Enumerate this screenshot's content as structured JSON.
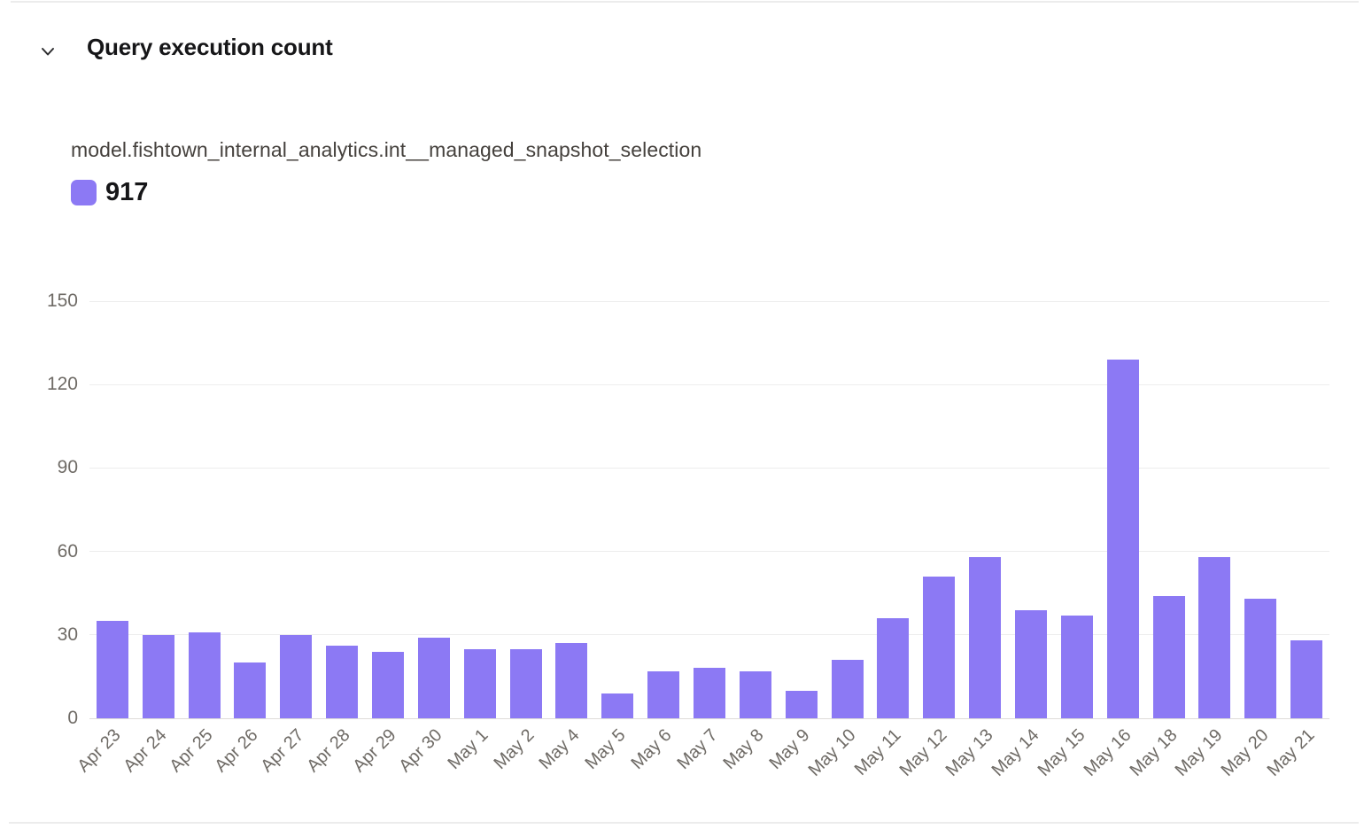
{
  "panel": {
    "title": "Query execution count",
    "collapse_icon": "chevron-down",
    "series_name": "model.fishtown_internal_analytics.int__managed_snapshot_selection",
    "legend": {
      "total": "917"
    }
  },
  "colors": {
    "bar": "#8c79f4",
    "legend_swatch": "#8c79f4",
    "gridline": "#ededed",
    "axis_line": "#dedcd9",
    "tick_text": "#6f6b66",
    "title_text": "#161618",
    "series_text": "#45413d"
  },
  "chart_data": {
    "type": "bar",
    "title": "Query execution count",
    "series_name": "model.fishtown_internal_analytics.int__managed_snapshot_selection",
    "series_total": 917,
    "categories": [
      "Apr 23",
      "Apr 24",
      "Apr 25",
      "Apr 26",
      "Apr 27",
      "Apr 28",
      "Apr 29",
      "Apr 30",
      "May 1",
      "May 2",
      "May 4",
      "May 5",
      "May 6",
      "May 7",
      "May 8",
      "May 9",
      "May 10",
      "May 11",
      "May 12",
      "May 13",
      "May 14",
      "May 15",
      "May 16",
      "May 18",
      "May 19",
      "May 20",
      "May 21"
    ],
    "values": [
      35,
      30,
      31,
      20,
      30,
      26,
      24,
      29,
      25,
      25,
      27,
      9,
      17,
      18,
      17,
      10,
      21,
      36,
      51,
      58,
      39,
      37,
      129,
      44,
      58,
      43,
      28
    ],
    "xlabel": "",
    "ylabel": "",
    "ylim": [
      0,
      150
    ],
    "yticks": [
      0,
      30,
      60,
      90,
      120,
      150
    ],
    "grid": true,
    "legend_position": "top-left",
    "x_tick_rotation": -45
  }
}
